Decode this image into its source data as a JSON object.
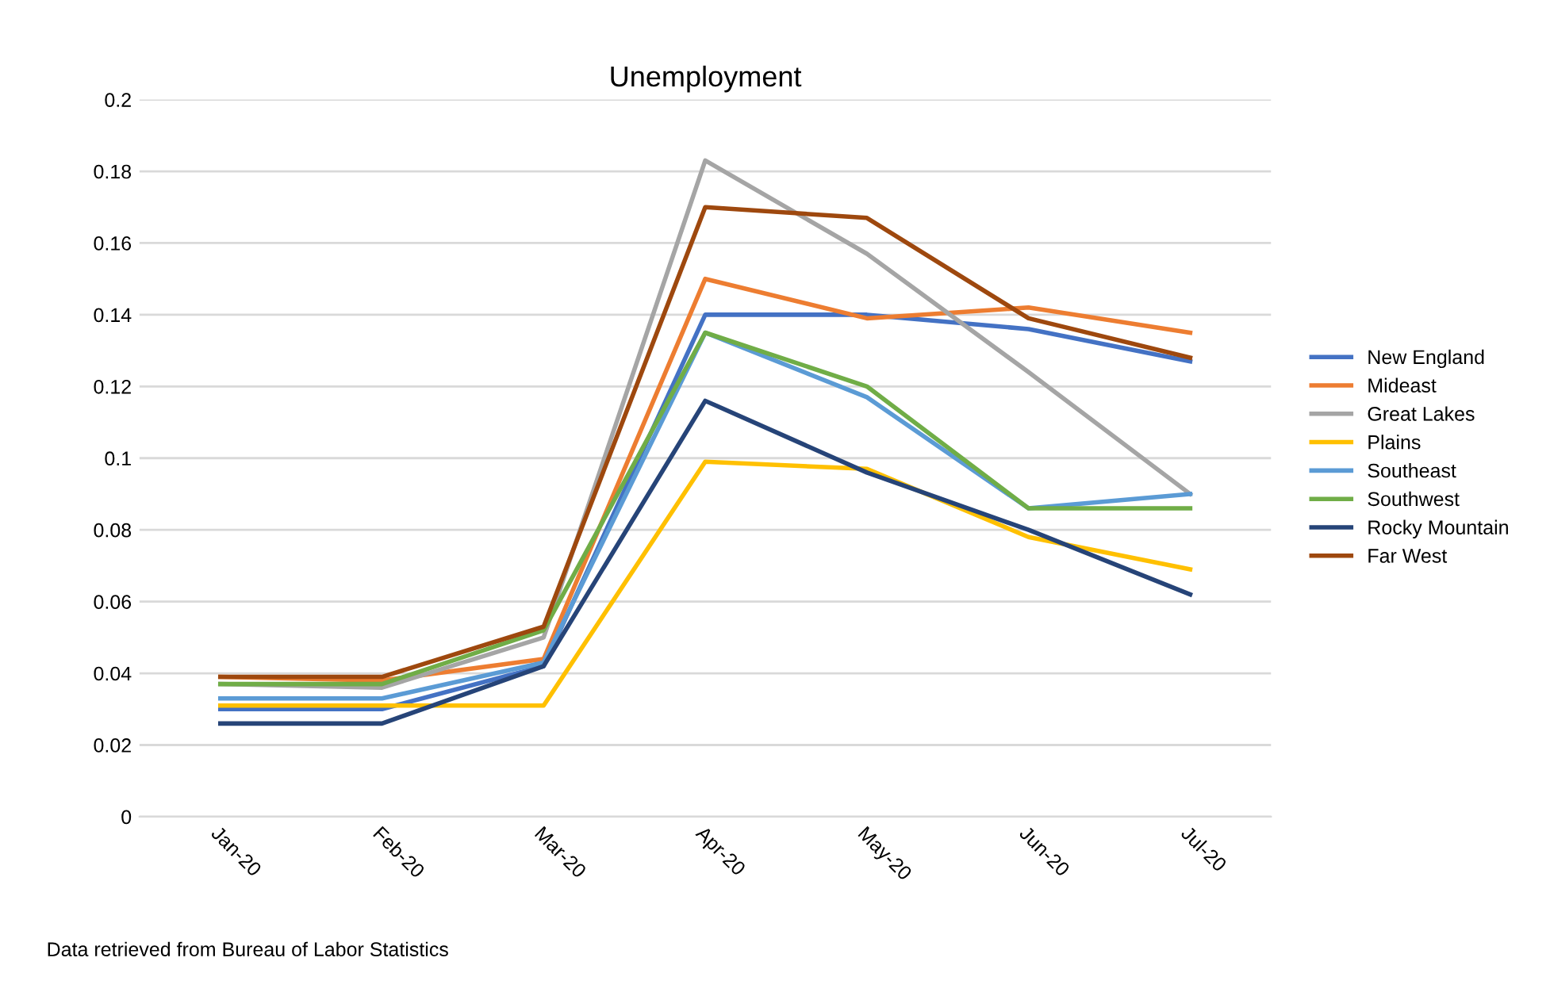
{
  "chart_data": {
    "type": "line",
    "title": "Unemployment",
    "categories": [
      "Jan-20",
      "Feb-20",
      "Mar-20",
      "Apr-20",
      "May-20",
      "Jun-20",
      "Jul-20"
    ],
    "series": [
      {
        "name": "New England",
        "color": "#4472c4",
        "values": [
          0.03,
          0.03,
          0.042,
          0.14,
          0.14,
          0.136,
          0.127
        ]
      },
      {
        "name": "Mideast",
        "color": "#ed7d31",
        "values": [
          0.039,
          0.038,
          0.044,
          0.15,
          0.139,
          0.142,
          0.135
        ]
      },
      {
        "name": "Great Lakes",
        "color": "#a5a5a5",
        "values": [
          0.037,
          0.036,
          0.05,
          0.183,
          0.157,
          0.124,
          0.09
        ]
      },
      {
        "name": "Plains",
        "color": "#ffc000",
        "values": [
          0.031,
          0.031,
          0.031,
          0.099,
          0.097,
          0.078,
          0.069
        ]
      },
      {
        "name": "Southeast",
        "color": "#5b9bd5",
        "values": [
          0.033,
          0.033,
          0.043,
          0.135,
          0.117,
          0.086,
          0.09
        ]
      },
      {
        "name": "Southwest",
        "color": "#70ad47",
        "values": [
          0.037,
          0.037,
          0.052,
          0.135,
          0.12,
          0.086,
          0.086
        ]
      },
      {
        "name": "Rocky Mountain",
        "color": "#264478",
        "values": [
          0.026,
          0.026,
          0.042,
          0.116,
          0.096,
          0.08,
          0.062
        ]
      },
      {
        "name": "Far West",
        "color": "#9e480e",
        "values": [
          0.039,
          0.039,
          0.053,
          0.17,
          0.167,
          0.139,
          0.128
        ]
      }
    ],
    "ylim": [
      0,
      0.2
    ],
    "yticks": [
      0,
      0.02,
      0.04,
      0.06,
      0.08,
      0.1,
      0.12,
      0.14,
      0.16,
      0.18,
      0.2
    ],
    "grid": "y",
    "legend": "right",
    "marker": "none",
    "line_style": "solid",
    "annotations": [
      "Data retrieved from Bureau of Labor Statistics"
    ]
  }
}
